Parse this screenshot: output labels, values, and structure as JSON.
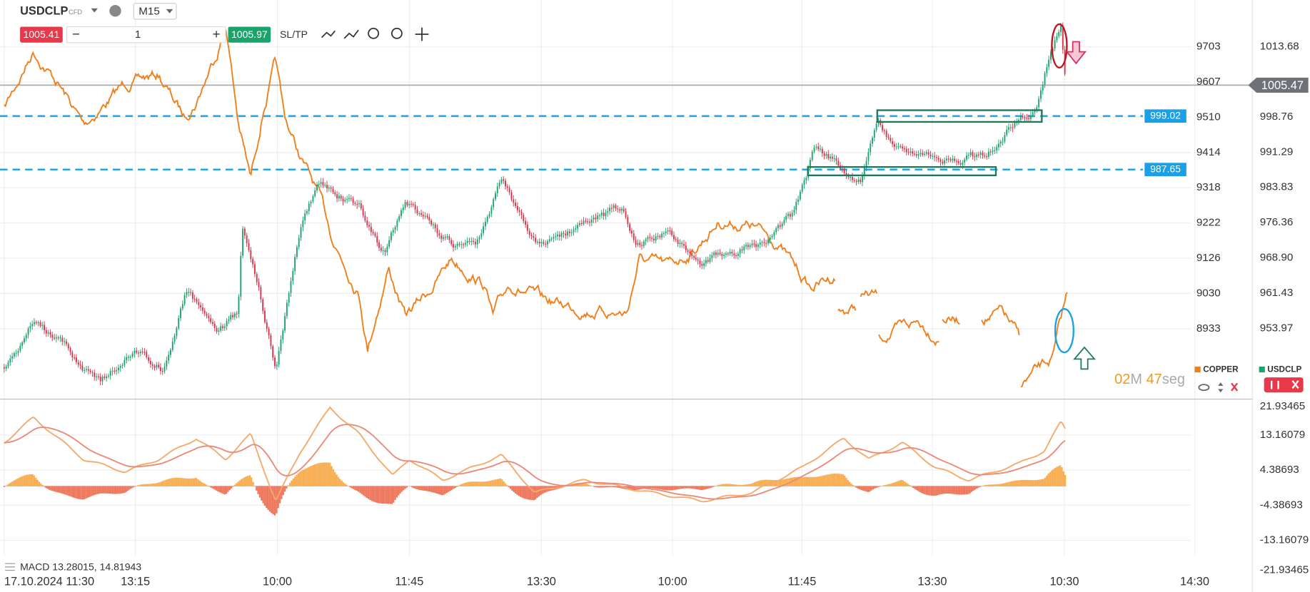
{
  "toolbar": {
    "symbol": "USDCLP",
    "symbol_type": "CFD",
    "timeframe": "M15",
    "sell_price": "1005.41",
    "quantity": "1",
    "buy_price": "1005.97",
    "sltp": "SL/TP"
  },
  "price_axis_left": [
    "9703",
    "9607",
    "9510",
    "9414",
    "9318",
    "9222",
    "9126",
    "9030",
    "8933"
  ],
  "price_axis_right": [
    "1013.68",
    "998.76",
    "991.29",
    "983.83",
    "976.36",
    "968.90",
    "961.43",
    "953.97"
  ],
  "current_price": "1005.47",
  "levels": [
    "999.02",
    "987.65"
  ],
  "legend": [
    "COPPER",
    "USDCLP"
  ],
  "countdown": {
    "minutes": "02",
    "minutes_unit": "M",
    "seconds": "47",
    "seconds_unit": "seg"
  },
  "macd_axis": [
    "21.93465",
    "13.16079",
    "4.38693",
    "-4.38693",
    "-13.16079",
    "-21.93465"
  ],
  "macd_label": "MACD 13.28015, 14.81943",
  "time_axis": [
    "17.10.2024 11:30",
    "13:15",
    "10:00",
    "11:45",
    "13:30",
    "10:00",
    "11:45",
    "13:30",
    "10:30",
    "14:30"
  ]
}
